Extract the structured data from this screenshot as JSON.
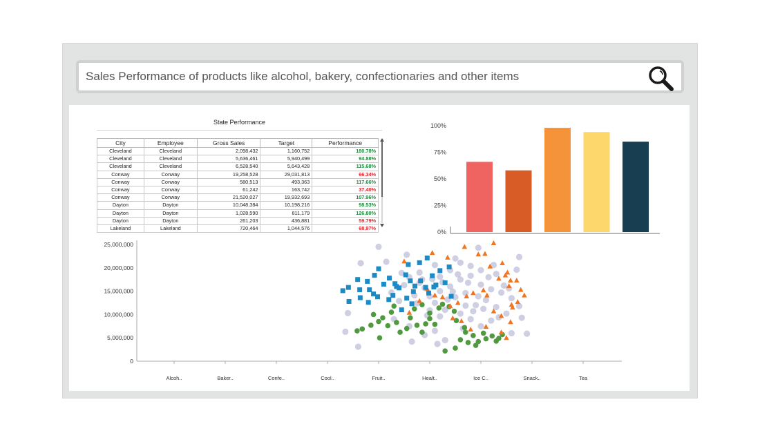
{
  "search": {
    "text": "Sales Performance of products like alcohol, bakery, confectionaries and other items",
    "icon": "magnifier-icon"
  },
  "table": {
    "title": "State Performance",
    "headers": [
      "City",
      "Employee",
      "Gross Sales",
      "Target",
      "Performance"
    ],
    "rows": [
      {
        "city": "Cleveland",
        "employee": "Cleveland",
        "gross_sales": "2,098,432",
        "target": "1,160,752",
        "performance": "180.78%",
        "status": "good"
      },
      {
        "city": "Cleveland",
        "employee": "Cleveland",
        "gross_sales": "5,636,461",
        "target": "5,940,499",
        "performance": "94.88%",
        "status": "good"
      },
      {
        "city": "Cleveland",
        "employee": "Cleveland",
        "gross_sales": "6,528,540",
        "target": "5,643,428",
        "performance": "115.68%",
        "status": "good"
      },
      {
        "city": "Conway",
        "employee": "Conway",
        "gross_sales": "19,258,528",
        "target": "29,031,813",
        "performance": "66.34%",
        "status": "bad"
      },
      {
        "city": "Conway",
        "employee": "Conway",
        "gross_sales": "580,513",
        "target": "493,363",
        "performance": "117.66%",
        "status": "good"
      },
      {
        "city": "Conway",
        "employee": "Conway",
        "gross_sales": "61,242",
        "target": "163,742",
        "performance": "37.40%",
        "status": "bad"
      },
      {
        "city": "Conway",
        "employee": "Conway",
        "gross_sales": "21,520,027",
        "target": "19,932,693",
        "performance": "107.96%",
        "status": "good"
      },
      {
        "city": "Dayton",
        "employee": "Dayton",
        "gross_sales": "10,048,384",
        "target": "10,198,216",
        "performance": "98.53%",
        "status": "good"
      },
      {
        "city": "Dayton",
        "employee": "Dayton",
        "gross_sales": "1,028,590",
        "target": "811,179",
        "performance": "126.80%",
        "status": "good"
      },
      {
        "city": "Dayton",
        "employee": "Dayton",
        "gross_sales": "261,203",
        "target": "436,881",
        "performance": "59.79%",
        "status": "bad"
      },
      {
        "city": "Lakeland",
        "employee": "Lakeland",
        "gross_sales": "720,464",
        "target": "1,044,576",
        "performance": "68.97%",
        "status": "bad"
      }
    ]
  },
  "colors": {
    "good": "#1e8a3c",
    "bad": "#e0262b",
    "frame": "#e2e3e3",
    "search_border": "#cfd0d0"
  },
  "chart_data": [
    {
      "type": "bar",
      "categories": [
        "",
        "",
        "",
        "",
        ""
      ],
      "values": [
        66,
        58,
        98,
        94,
        85
      ],
      "colors": [
        "#ef6461",
        "#d85c26",
        "#f5933a",
        "#fdd66c",
        "#173f51"
      ],
      "ylim": [
        0,
        100
      ],
      "yticks": [
        0,
        25,
        50,
        75,
        100
      ],
      "ytick_labels": [
        "0%",
        "25%",
        "50%",
        "75%",
        "100%"
      ],
      "grid": false,
      "legend": "none"
    },
    {
      "type": "scatter",
      "categories": [
        "Alcoh..",
        "Baker..",
        "Confe..",
        "Cool..",
        "Fruit..",
        "Healt..",
        "Ice C..",
        "Snack..",
        "Tea"
      ],
      "ylim": [
        0,
        25000000
      ],
      "yticks": [
        0,
        5000000,
        10000000,
        15000000,
        20000000,
        25000000
      ],
      "ytick_labels": [
        "0",
        "5,000,000",
        "10,000,000",
        "15,000,000",
        "20,000,000",
        "25,000,000"
      ],
      "grid": false,
      "legend": "none",
      "series": [
        {
          "marker": "square",
          "color": "#1b8ac6",
          "points": [
            [
              3.3,
              15.1
            ],
            [
              3.41,
              15.8
            ],
            [
              3.59,
              17.5
            ],
            [
              3.63,
              15.3
            ],
            [
              3.42,
              12.8
            ],
            [
              3.64,
              13.6
            ],
            [
              3.78,
              17.1
            ],
            [
              3.82,
              15.3
            ],
            [
              3.9,
              14.4
            ],
            [
              3.8,
              12.6
            ],
            [
              3.98,
              13.8
            ],
            [
              4.1,
              16.5
            ],
            [
              4.21,
              17.8
            ],
            [
              4.28,
              14.1
            ],
            [
              4.32,
              16.6
            ],
            [
              4.4,
              15.7
            ],
            [
              4.53,
              18.5
            ],
            [
              4.62,
              17.2
            ],
            [
              4.71,
              16.1
            ],
            [
              4.55,
              13.5
            ],
            [
              4.68,
              14.9
            ],
            [
              4.82,
              17.2
            ],
            [
              4.92,
              15.8
            ],
            [
              4.98,
              14.6
            ],
            [
              5.12,
              16.3
            ],
            [
              5.3,
              16.8
            ],
            [
              5.42,
              13.9
            ],
            [
              5.38,
              20.2
            ],
            [
              4.8,
              21.1
            ],
            [
              4.95,
              22.1
            ],
            [
              5.05,
              18.3
            ],
            [
              4.2,
              13.2
            ],
            [
              4.0,
              19.8
            ],
            [
              3.92,
              18.4
            ],
            [
              4.45,
              11.0
            ],
            [
              4.65,
              12.3
            ],
            [
              5.2,
              19.4
            ],
            [
              4.35,
              16.0
            ],
            [
              4.58,
              20.7
            ],
            [
              5.08,
              15.9
            ]
          ]
        },
        {
          "marker": "circle",
          "color": "#4f9a3f",
          "points": [
            [
              3.58,
              6.5
            ],
            [
              3.68,
              6.9
            ],
            [
              3.85,
              7.7
            ],
            [
              3.9,
              10.0
            ],
            [
              4.0,
              8.5
            ],
            [
              4.08,
              9.3
            ],
            [
              4.18,
              7.6
            ],
            [
              4.02,
              5.0
            ],
            [
              4.25,
              10.5
            ],
            [
              4.35,
              8.3
            ],
            [
              4.42,
              6.2
            ],
            [
              4.55,
              7.0
            ],
            [
              4.62,
              9.3
            ],
            [
              4.75,
              7.7
            ],
            [
              4.85,
              6.2
            ],
            [
              4.92,
              8.0
            ],
            [
              5.0,
              10.3
            ],
            [
              5.18,
              11.4
            ],
            [
              5.25,
              12.2
            ],
            [
              5.38,
              11.7
            ],
            [
              5.48,
              10.7
            ],
            [
              5.52,
              8.7
            ],
            [
              5.7,
              6.2
            ],
            [
              5.85,
              5.5
            ],
            [
              5.95,
              4.2
            ],
            [
              6.05,
              6.0
            ],
            [
              6.1,
              4.8
            ],
            [
              6.22,
              5.4
            ],
            [
              6.35,
              4.9
            ],
            [
              6.42,
              5.7
            ],
            [
              5.6,
              4.6
            ],
            [
              5.75,
              4.0
            ],
            [
              5.3,
              2.2
            ],
            [
              5.5,
              2.8
            ],
            [
              4.85,
              12.1
            ],
            [
              4.7,
              11.2
            ],
            [
              4.3,
              11.8
            ],
            [
              5.0,
              9.1
            ],
            [
              5.1,
              7.9
            ],
            [
              5.9,
              3.4
            ],
            [
              6.3,
              4.3
            ],
            [
              5.68,
              7.2
            ]
          ]
        },
        {
          "marker": "triangle",
          "color": "#f17421",
          "points": [
            [
              4.5,
              21.4
            ],
            [
              5.05,
              23.2
            ],
            [
              5.35,
              22.2
            ],
            [
              5.68,
              24.5
            ],
            [
              5.95,
              22.9
            ],
            [
              6.08,
              23.0
            ],
            [
              6.25,
              25.3
            ],
            [
              6.18,
              20.3
            ],
            [
              6.42,
              21.0
            ],
            [
              6.52,
              19.0
            ],
            [
              6.48,
              18.4
            ],
            [
              6.35,
              17.7
            ],
            [
              6.58,
              17.3
            ],
            [
              6.55,
              16.1
            ],
            [
              6.7,
              17.3
            ],
            [
              6.78,
              15.3
            ],
            [
              6.85,
              14.1
            ],
            [
              6.72,
              12.7
            ],
            [
              6.62,
              11.5
            ],
            [
              6.12,
              14.1
            ],
            [
              6.05,
              15.2
            ],
            [
              5.85,
              14.6
            ],
            [
              5.72,
              13.9
            ],
            [
              5.55,
              12.5
            ],
            [
              5.4,
              11.8
            ],
            [
              5.25,
              13.7
            ],
            [
              5.1,
              14.1
            ],
            [
              4.95,
              15.5
            ],
            [
              4.8,
              12.9
            ],
            [
              4.6,
              10.4
            ],
            [
              5.45,
              9.2
            ],
            [
              5.62,
              8.6
            ],
            [
              6.4,
              9.7
            ],
            [
              6.25,
              10.7
            ],
            [
              6.58,
              8.4
            ],
            [
              6.4,
              6.2
            ],
            [
              6.5,
              5.0
            ],
            [
              5.8,
              6.8
            ],
            [
              6.1,
              7.4
            ],
            [
              6.6,
              12.1
            ]
          ]
        },
        {
          "marker": "circle",
          "color": "#a6a8cb",
          "opacity": 0.55,
          "note": "",
          "points": [
            [
              3.65,
              21.0
            ],
            [
              4.0,
              24.5
            ],
            [
              4.6,
              18.0
            ],
            [
              4.8,
              16.8
            ],
            [
              5.0,
              13.9
            ],
            [
              5.2,
              15.0
            ],
            [
              5.4,
              16.0
            ],
            [
              5.6,
              17.5
            ],
            [
              5.8,
              18.3
            ],
            [
              6.0,
              16.4
            ],
            [
              6.2,
              15.4
            ],
            [
              5.1,
              12.5
            ],
            [
              5.3,
              11.0
            ],
            [
              5.5,
              13.7
            ],
            [
              5.7,
              14.6
            ],
            [
              5.9,
              12.0
            ],
            [
              6.1,
              13.1
            ],
            [
              6.3,
              11.6
            ],
            [
              4.7,
              14.1
            ],
            [
              4.9,
              15.7
            ],
            [
              5.0,
              10.9
            ],
            [
              5.2,
              9.6
            ],
            [
              5.6,
              10.2
            ],
            [
              5.8,
              9.0
            ],
            [
              6.2,
              8.7
            ],
            [
              4.5,
              16.3
            ],
            [
              4.4,
              12.9
            ],
            [
              5.4,
              19.5
            ],
            [
              5.6,
              21.1
            ],
            [
              5.8,
              20.4
            ],
            [
              6.0,
              19.5
            ],
            [
              6.3,
              18.7
            ],
            [
              4.8,
              19.0
            ],
            [
              5.1,
              20.6
            ],
            [
              5.2,
              18.1
            ],
            [
              6.4,
              14.7
            ],
            [
              6.6,
              13.5
            ],
            [
              6.75,
              11.8
            ],
            [
              6.5,
              10.2
            ],
            [
              6.8,
              9.3
            ],
            [
              4.3,
              9.0
            ],
            [
              4.6,
              7.5
            ],
            [
              4.9,
              5.6
            ],
            [
              5.1,
              6.5
            ],
            [
              5.3,
              4.5
            ],
            [
              3.4,
              10.3
            ],
            [
              3.35,
              6.3
            ],
            [
              3.6,
              3.1
            ],
            [
              5.95,
              24.3
            ],
            [
              6.75,
              22.3
            ],
            [
              6.7,
              19.6
            ],
            [
              4.55,
              22.8
            ],
            [
              4.15,
              21.3
            ],
            [
              5.65,
              7.0
            ],
            [
              6.05,
              11.2
            ],
            [
              5.45,
              14.9
            ],
            [
              5.75,
              16.8
            ],
            [
              5.35,
              13.2
            ],
            [
              6.15,
              18.0
            ],
            [
              4.85,
              17.5
            ],
            [
              5.55,
              18.6
            ],
            [
              4.95,
              9.8
            ],
            [
              6.45,
              16.2
            ],
            [
              5.25,
              16.9
            ],
            [
              6.6,
              6.0
            ],
            [
              6.9,
              5.9
            ],
            [
              6.0,
              7.5
            ],
            [
              5.15,
              3.7
            ],
            [
              4.65,
              4.2
            ],
            [
              5.85,
              10.7
            ],
            [
              6.35,
              9.4
            ],
            [
              5.05,
              17.6
            ],
            [
              4.75,
              12.4
            ],
            [
              5.95,
              13.9
            ],
            [
              6.25,
              20.6
            ],
            [
              4.25,
              14.7
            ],
            [
              5.5,
              22.0
            ],
            [
              4.45,
              18.9
            ],
            [
              6.55,
              15.6
            ],
            [
              5.7,
              11.9
            ]
          ]
        }
      ]
    }
  ]
}
